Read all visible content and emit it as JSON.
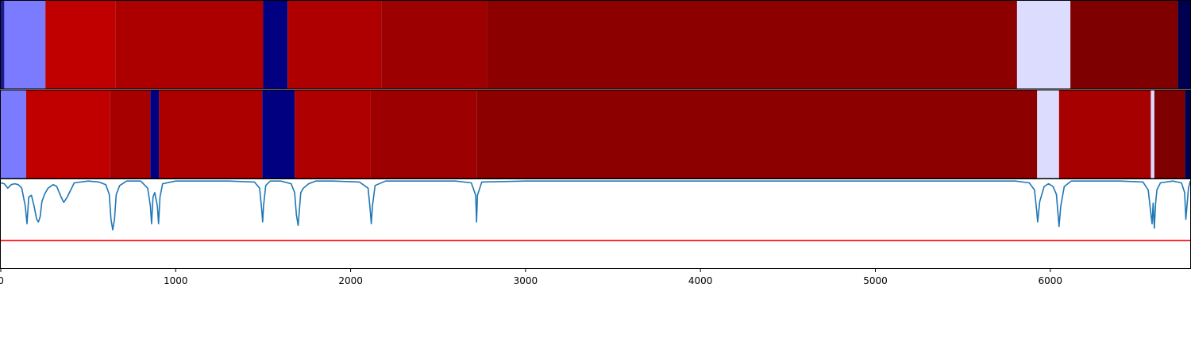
{
  "chart_data": {
    "type": "heatmap",
    "title": "",
    "xlabel": "",
    "ylabel": "",
    "xlim": [
      0,
      6800
    ],
    "grid": false,
    "legend": "none",
    "xticks": [
      {
        "value": 0,
        "label": "0"
      },
      {
        "value": 1000,
        "label": "1000"
      },
      {
        "value": 2000,
        "label": "2000"
      },
      {
        "value": 3000,
        "label": "3000"
      },
      {
        "value": 4000,
        "label": "4000"
      },
      {
        "value": 5000,
        "label": "5000"
      },
      {
        "value": 6000,
        "label": "6000"
      }
    ],
    "panels": [
      {
        "type": "segment-heatmap",
        "segments": [
          {
            "start": 0,
            "end": 20,
            "color": "#1a1a8c"
          },
          {
            "start": 20,
            "end": 255,
            "color": "#7b7bff"
          },
          {
            "start": 255,
            "end": 655,
            "color": "#c00000"
          },
          {
            "start": 655,
            "end": 1500,
            "color": "#ac0000"
          },
          {
            "start": 1500,
            "end": 1640,
            "color": "#000080"
          },
          {
            "start": 1640,
            "end": 2175,
            "color": "#ae0000"
          },
          {
            "start": 2175,
            "end": 2780,
            "color": "#9c0000"
          },
          {
            "start": 2780,
            "end": 5810,
            "color": "#8c0000"
          },
          {
            "start": 5810,
            "end": 6115,
            "color": "#dcdcff"
          },
          {
            "start": 6115,
            "end": 6730,
            "color": "#7e0000"
          },
          {
            "start": 6730,
            "end": 6800,
            "color": "#000050"
          }
        ]
      },
      {
        "type": "segment-heatmap",
        "segments": [
          {
            "start": 0,
            "end": 145,
            "color": "#7b7bff"
          },
          {
            "start": 145,
            "end": 625,
            "color": "#c00000"
          },
          {
            "start": 625,
            "end": 855,
            "color": "#a60000"
          },
          {
            "start": 855,
            "end": 905,
            "color": "#000080"
          },
          {
            "start": 905,
            "end": 1495,
            "color": "#ac0000"
          },
          {
            "start": 1495,
            "end": 1680,
            "color": "#000080"
          },
          {
            "start": 1680,
            "end": 2115,
            "color": "#ae0000"
          },
          {
            "start": 2115,
            "end": 2720,
            "color": "#9c0000"
          },
          {
            "start": 2720,
            "end": 5925,
            "color": "#8c0000"
          },
          {
            "start": 5925,
            "end": 6050,
            "color": "#dcdcff"
          },
          {
            "start": 6050,
            "end": 6575,
            "color": "#a60000"
          },
          {
            "start": 6575,
            "end": 6595,
            "color": "#dcdcff"
          },
          {
            "start": 6595,
            "end": 6770,
            "color": "#7e0000"
          },
          {
            "start": 6770,
            "end": 6800,
            "color": "#000050"
          }
        ]
      },
      {
        "type": "line",
        "ylim": [
          0,
          1
        ],
        "series": [
          {
            "color": "#1f77b4",
            "x": [
              0,
              20,
              40,
              60,
              80,
              100,
              120,
              140,
              150,
              160,
              175,
              190,
              205,
              215,
              225,
              235,
              250,
              270,
              300,
              320,
              330,
              345,
              360,
              380,
              420,
              500,
              560,
              600,
              620,
              630,
              640,
              650,
              660,
              680,
              720,
              800,
              840,
              855,
              862,
              870,
              880,
              895,
              902,
              910,
              925,
              1000,
              1300,
              1450,
              1480,
              1492,
              1497,
              1502,
              1515,
              1540,
              1600,
              1660,
              1680,
              1690,
              1700,
              1715,
              1730,
              1760,
              1800,
              1900,
              2050,
              2100,
              2112,
              2118,
              2125,
              2140,
              2200,
              2600,
              2690,
              2715,
              2720,
              2725,
              2750,
              3000,
              5800,
              5880,
              5910,
              5922,
              5928,
              5940,
              5965,
              5990,
              6015,
              6035,
              6050,
              6060,
              6080,
              6120,
              6400,
              6530,
              6560,
              6575,
              6582,
              6588,
              6595,
              6602,
              6610,
              6630,
              6700,
              6750,
              6768,
              6775,
              6790,
              6800
            ],
            "y": [
              0.96,
              0.95,
              0.9,
              0.94,
              0.95,
              0.94,
              0.9,
              0.7,
              0.5,
              0.8,
              0.82,
              0.7,
              0.55,
              0.52,
              0.58,
              0.75,
              0.83,
              0.9,
              0.94,
              0.92,
              0.87,
              0.8,
              0.74,
              0.8,
              0.96,
              0.98,
              0.97,
              0.94,
              0.83,
              0.55,
              0.43,
              0.55,
              0.83,
              0.93,
              0.98,
              0.98,
              0.9,
              0.7,
              0.5,
              0.8,
              0.85,
              0.7,
              0.5,
              0.8,
              0.95,
              0.98,
              0.98,
              0.97,
              0.9,
              0.65,
              0.52,
              0.7,
              0.93,
              0.98,
              0.98,
              0.95,
              0.85,
              0.6,
              0.48,
              0.85,
              0.9,
              0.95,
              0.98,
              0.98,
              0.97,
              0.9,
              0.65,
              0.5,
              0.7,
              0.93,
              0.98,
              0.98,
              0.96,
              0.82,
              0.52,
              0.82,
              0.97,
              0.98,
              0.98,
              0.96,
              0.88,
              0.65,
              0.52,
              0.75,
              0.92,
              0.95,
              0.92,
              0.83,
              0.47,
              0.7,
              0.92,
              0.98,
              0.98,
              0.97,
              0.88,
              0.62,
              0.5,
              0.73,
              0.45,
              0.73,
              0.88,
              0.96,
              0.98,
              0.96,
              0.85,
              0.55,
              0.9,
              0.98
            ]
          },
          {
            "color": "#ff0000",
            "x": [
              0,
              6800
            ],
            "y": [
              0.31,
              0.31
            ]
          }
        ]
      }
    ]
  }
}
